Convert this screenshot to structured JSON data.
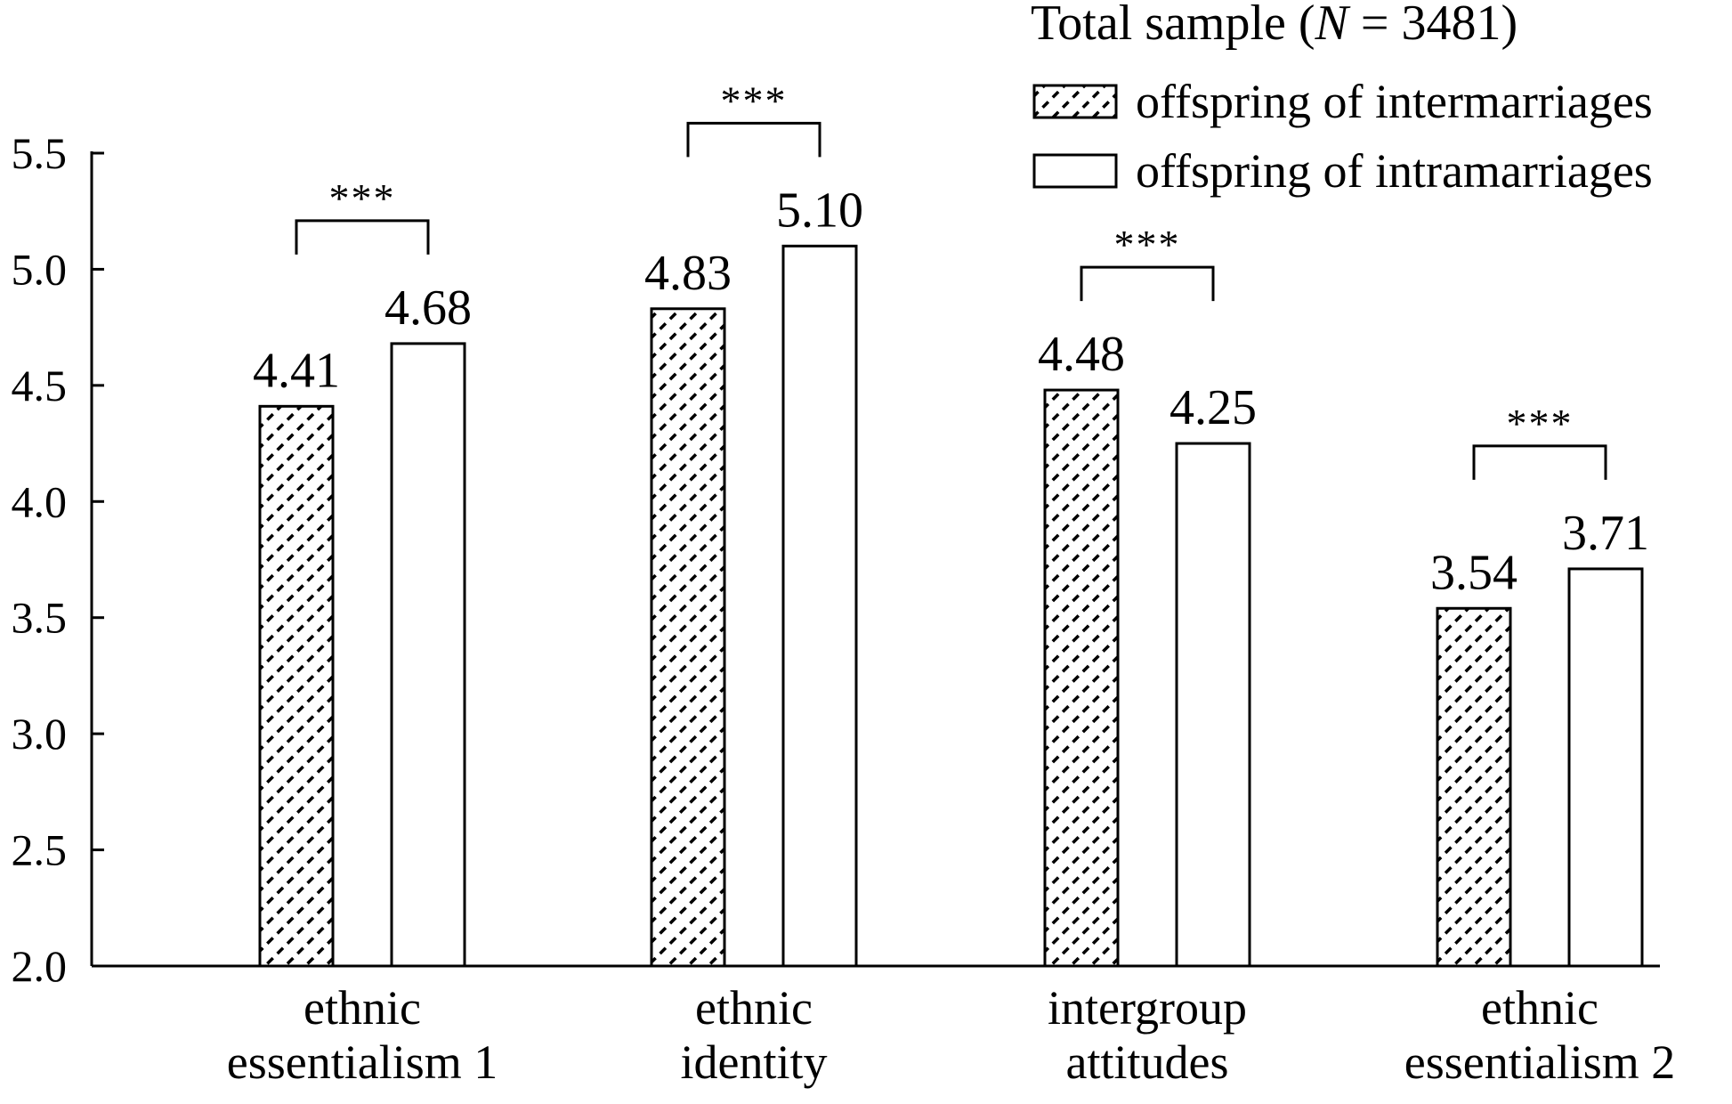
{
  "chart_data": {
    "type": "bar",
    "title": "",
    "xlabel": "",
    "ylabel": "",
    "ylim": [
      2.0,
      5.5
    ],
    "yticks": [
      "2.0",
      "2.5",
      "3.0",
      "3.5",
      "4.0",
      "4.5",
      "5.0",
      "5.5"
    ],
    "categories": [
      [
        "ethnic",
        "essentialism 1"
      ],
      [
        "ethnic",
        "identity"
      ],
      [
        "intergroup",
        "attitudes"
      ],
      [
        "ethnic",
        "essentialism 2"
      ]
    ],
    "series": [
      {
        "name": "offspring of intermarriages",
        "pattern": "hatched",
        "values": [
          4.41,
          4.83,
          4.48,
          3.54
        ],
        "labels": [
          "4.41",
          "4.83",
          "4.48",
          "3.54"
        ]
      },
      {
        "name": "offspring of intramarriages",
        "pattern": "plain",
        "values": [
          4.68,
          5.1,
          4.25,
          3.71
        ],
        "labels": [
          "4.68",
          "5.10",
          "4.25",
          "3.71"
        ]
      }
    ],
    "significance": [
      "***",
      "***",
      "***",
      "***"
    ],
    "legend": {
      "title": "Total sample (",
      "title_italic": "N",
      "title_rest": " = 3481)",
      "placement": "top-right"
    }
  }
}
